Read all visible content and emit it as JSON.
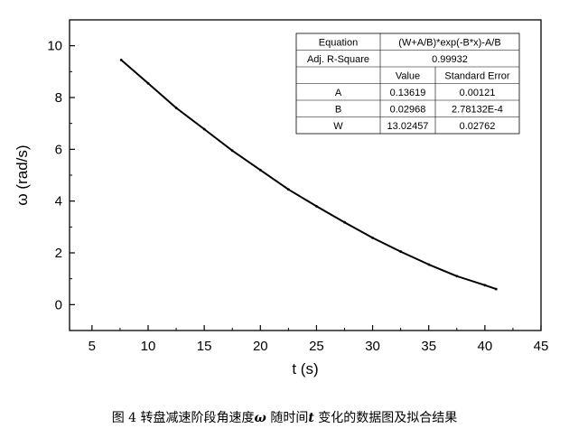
{
  "chart_data": {
    "type": "line",
    "xlabel": "t (s)",
    "ylabel": "ω (rad/s)",
    "xlim": [
      3,
      45
    ],
    "ylim": [
      -1,
      11
    ],
    "xticks": [
      "5",
      "10",
      "15",
      "20",
      "25",
      "30",
      "35",
      "40",
      "45"
    ],
    "yticks": [
      "0",
      "2",
      "4",
      "6",
      "8",
      "10"
    ],
    "grid": false,
    "series": [
      {
        "x": [
          7.6,
          10,
          12.5,
          15,
          17.5,
          20,
          22.5,
          25,
          27.5,
          30,
          32.5,
          35,
          37.5,
          40,
          41
        ],
        "y": [
          9.45,
          8.55,
          7.6,
          6.78,
          5.95,
          5.2,
          4.45,
          3.8,
          3.18,
          2.58,
          2.05,
          1.55,
          1.1,
          0.75,
          0.6
        ]
      }
    ],
    "fit_table": {
      "rows": [
        [
          "Equation",
          "(W+A/B)*exp(-B*x)-A/B"
        ],
        [
          "Adj. R-Square",
          "0.99932"
        ],
        [
          "",
          "Value",
          "Standard Error"
        ],
        [
          "A",
          "0.13619",
          "0.00121"
        ],
        [
          "B",
          "0.02968",
          "2.78132E-4"
        ],
        [
          "W",
          "13.02457",
          "0.02762"
        ]
      ]
    }
  },
  "caption": {
    "prefix": "图 4  转盘减速阶段角速度",
    "omega": "ω",
    "middle": " 随时间",
    "t": "t",
    "suffix": " 变化的数据图及拟合结果"
  }
}
